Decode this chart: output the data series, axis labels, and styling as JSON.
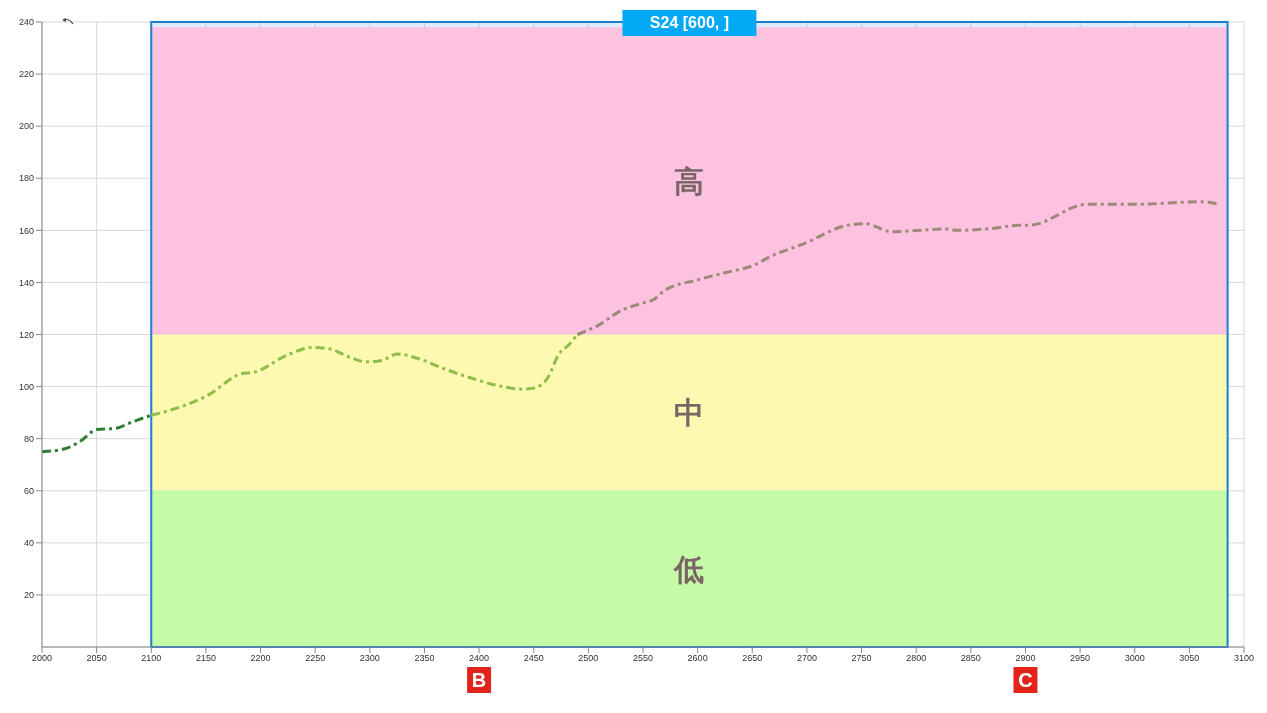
{
  "chart_data": {
    "type": "line",
    "xlim": [
      2000,
      3100
    ],
    "xticks": [
      2000,
      2050,
      2100,
      2150,
      2200,
      2250,
      2300,
      2350,
      2400,
      2450,
      2500,
      2550,
      2600,
      2650,
      2700,
      2750,
      2800,
      2850,
      2900,
      2950,
      3000,
      3050,
      3100
    ],
    "ylim": [
      0,
      240
    ],
    "yticks": [
      20,
      40,
      60,
      80,
      100,
      120,
      140,
      160,
      180,
      200,
      220,
      240
    ],
    "grid": true,
    "line_style": "dashed",
    "marker": "none",
    "series": [
      {
        "color": "#2e7d32",
        "x": [
          2000,
          2020,
          2035,
          2050,
          2068,
          2080,
          2100
        ],
        "values": [
          75,
          76,
          79,
          83.5,
          84,
          86,
          89
        ]
      },
      {
        "color": "#8fbc4a",
        "x": [
          2100,
          2118,
          2151,
          2183,
          2194,
          2224,
          2247,
          2263,
          2280,
          2297,
          2311,
          2325,
          2346,
          2367,
          2391,
          2416,
          2440,
          2451,
          2463,
          2473,
          2482,
          2490
        ],
        "values": [
          89,
          91,
          96.5,
          105,
          105.5,
          112,
          115,
          114.5,
          111.5,
          109.5,
          110,
          112.5,
          110.5,
          107,
          103.5,
          100.5,
          99,
          99.5,
          103.5,
          112.5,
          116,
          120
        ]
      },
      {
        "color": "#9e8878",
        "x": [
          2490,
          2509,
          2529,
          2549,
          2560,
          2570,
          2600,
          2628,
          2651,
          2667,
          2698,
          2738,
          2754,
          2777,
          2829,
          2837,
          2864,
          2897,
          2904,
          2956,
          2999,
          3063,
          3077
        ],
        "values": [
          120,
          123.5,
          129,
          132,
          133.5,
          137,
          141,
          144,
          146.5,
          150,
          155,
          162,
          162.5,
          159.5,
          160.5,
          160,
          160.5,
          162,
          162,
          170,
          170,
          171,
          170
        ]
      }
    ],
    "bands": [
      {
        "axis": "y",
        "from": 120,
        "to": 238,
        "label": "高",
        "color": "#fcc2e0"
      },
      {
        "axis": "y",
        "from": 60,
        "to": 120,
        "label": "中",
        "color": "#fdf9b0"
      },
      {
        "axis": "y",
        "from": 0,
        "to": 60,
        "label": "低",
        "color": "#c6fba8"
      },
      {
        "axis": "x",
        "from": 2100,
        "to": 3085,
        "label": "S24  [600, ]",
        "color": "#1a7fd0"
      }
    ],
    "annotations": [
      {
        "text": "B",
        "x": 2400,
        "y": 0
      },
      {
        "text": "C",
        "x": 2900,
        "y": 0
      }
    ]
  }
}
